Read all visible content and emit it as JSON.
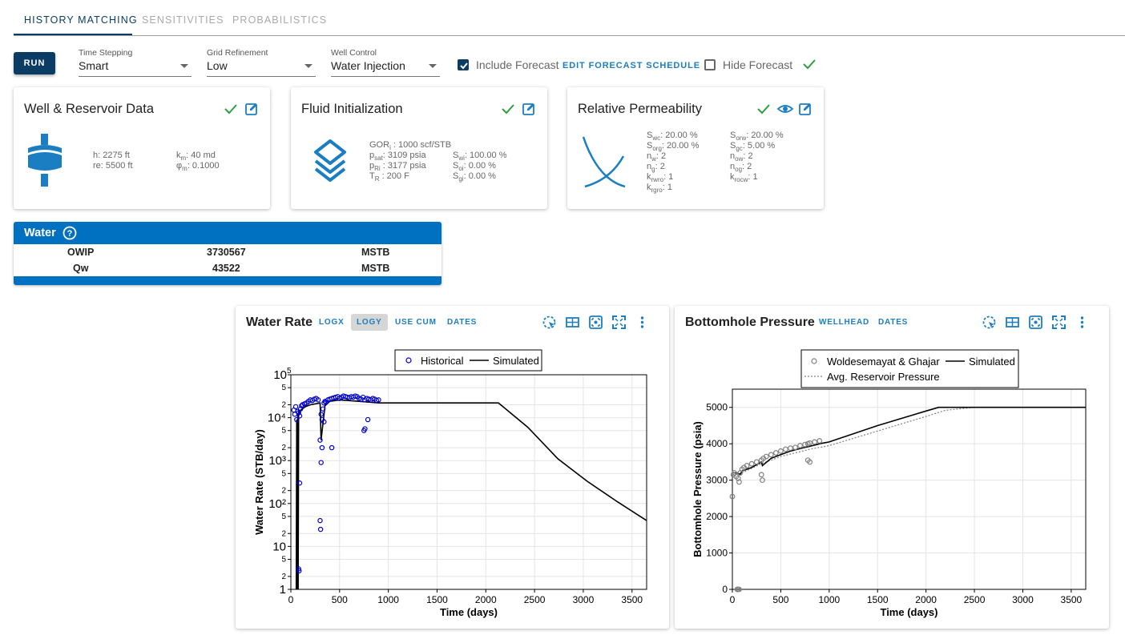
{
  "tabs": [
    {
      "label": "HISTORY MATCHING",
      "active": true
    },
    {
      "label": "SENSITIVITIES",
      "active": false
    },
    {
      "label": "PROBABILISTICS",
      "active": false
    }
  ],
  "toolbar": {
    "run_label": "RUN",
    "time_stepping": {
      "label": "Time Stepping",
      "value": "Smart"
    },
    "grid_refinement": {
      "label": "Grid Refinement",
      "value": "Low"
    },
    "well_control": {
      "label": "Well Control",
      "value": "Water Injection"
    },
    "include_forecast": {
      "label": "Include Forecast",
      "checked": true
    },
    "edit_forecast_label": "EDIT FORECAST SCHEDULE",
    "hide_forecast": {
      "label": "Hide Forecast",
      "checked": false
    },
    "status_icon": "check-icon"
  },
  "cards": {
    "well": {
      "title": "Well & Reservoir Data",
      "h": "h:  2275 ft",
      "re": "re:  5500 ft",
      "km_label": "k",
      "km_sub": "m",
      "km_value": ":  40 md",
      "phim_label": "φ",
      "phim_sub": "m",
      "phim_value": ":  0.1000"
    },
    "fluid": {
      "title": "Fluid Initialization",
      "gor": {
        "l": "GOR",
        "s": "i",
        "v": " :  1000 scf/STB"
      },
      "psat": {
        "l": "p",
        "s": "sat",
        "v": ":  3109 psia"
      },
      "pri": {
        "l": "p",
        "s": "Ri",
        "v": " :  3177 psia"
      },
      "tr": {
        "l": "T",
        "s": "R",
        "v": " :  200 F"
      },
      "swi": {
        "l": "S",
        "s": "wi",
        "v": ":  100.00 %"
      },
      "soi": {
        "l": "S",
        "s": "oi",
        "v": ":  0.00 %"
      },
      "sgi": {
        "l": "S",
        "s": "gi",
        "v": ":  0.00 %"
      }
    },
    "relperm": {
      "title": "Relative Permeability",
      "left": [
        {
          "l": "S",
          "s": "wc",
          "v": ":  20.00 %"
        },
        {
          "l": "S",
          "s": "org",
          "v": ":  20.00 %"
        },
        {
          "l": "n",
          "s": "w",
          "v": ":  2"
        },
        {
          "l": "n",
          "s": "g",
          "v": ":  2"
        },
        {
          "l": "k",
          "s": "rwro",
          "v": ":  1"
        },
        {
          "l": "k",
          "s": "rgro",
          "v": ":  1"
        }
      ],
      "right": [
        {
          "l": "S",
          "s": "orw",
          "v": ":  20.00 %"
        },
        {
          "l": "S",
          "s": "gc",
          "v": ":  5.00 %"
        },
        {
          "l": "n",
          "s": "ow",
          "v": ":  2"
        },
        {
          "l": "n",
          "s": "og",
          "v": ":  2"
        },
        {
          "l": "k",
          "s": "rocw",
          "v": ":  1"
        }
      ]
    }
  },
  "water": {
    "title": "Water",
    "rows": [
      {
        "name": "OWIP",
        "value": "3730567",
        "unit": "MSTB"
      },
      {
        "name": "Qw",
        "value": "43522",
        "unit": "MSTB"
      }
    ]
  },
  "plots": {
    "water_rate": {
      "title": "Water Rate",
      "buttons": [
        "LOGX",
        "LOGY",
        "USE CUM",
        "DATES"
      ],
      "active_button": "LOGY"
    },
    "bhp": {
      "title": "Bottomhole Pressure",
      "buttons": [
        "WELLHEAD",
        "DATES"
      ]
    }
  },
  "colors": {
    "accent": "#0070c0",
    "navy": "#0b3c63",
    "green": "#2e9e44",
    "link": "#1b7ec2"
  },
  "chart_data": [
    {
      "type": "line",
      "title": "",
      "xlabel": "Time (days)",
      "ylabel": "Water Rate (STB/day)",
      "xlim": [
        0,
        3650
      ],
      "ylim": [
        1,
        100000
      ],
      "y_scale": "log",
      "x_ticks": [
        0,
        500,
        1000,
        1500,
        2000,
        2500,
        3000,
        3500
      ],
      "y_tick_labels": [
        "1",
        "2",
        "5",
        "10",
        "2",
        "5",
        "10²",
        "2",
        "5",
        "10³",
        "2",
        "5",
        "10⁴",
        "2",
        "5",
        "10⁵"
      ],
      "legend": "top-center",
      "grid": true,
      "series": [
        {
          "name": "Historical",
          "marker": "circle-open",
          "color": "#0000cc",
          "x": [
            30,
            40,
            50,
            60,
            70,
            80,
            90,
            100,
            110,
            120,
            140,
            160,
            180,
            200,
            220,
            240,
            260,
            280,
            300,
            310,
            320,
            330,
            340,
            350,
            360,
            380,
            400,
            420,
            440,
            460,
            480,
            500,
            520,
            540,
            560,
            580,
            600,
            620,
            640,
            660,
            680,
            700,
            720,
            740,
            760,
            780,
            800,
            820,
            840,
            860,
            880,
            900,
            80,
            85,
            90,
            300,
            305,
            310,
            320,
            340,
            750,
            760,
            790,
            420
          ],
          "y": [
            15000,
            12000,
            18000,
            9000,
            14000,
            13000,
            11000,
            16000,
            19000,
            20000,
            21000,
            22000,
            24000,
            26000,
            25000,
            27000,
            28000,
            26000,
            3000,
            12000,
            9000,
            16000,
            22000,
            24000,
            23000,
            26000,
            27000,
            28000,
            29000,
            30000,
            31000,
            28000,
            30000,
            32000,
            31000,
            30000,
            29000,
            31000,
            30000,
            32000,
            31000,
            28000,
            27000,
            30000,
            26000,
            28000,
            27000,
            26000,
            28000,
            27000,
            25000,
            26000,
            3,
            2.7,
            300,
            40,
            25,
            900,
            2000,
            8000,
            5000,
            5500,
            9000,
            2000
          ]
        },
        {
          "name": "Simulated",
          "color": "#000000",
          "x": [
            55,
            60,
            65,
            70,
            75,
            80,
            90,
            100,
            150,
            200,
            300,
            310,
            350,
            400,
            500,
            600,
            700,
            800,
            900,
            1000,
            1500,
            2000,
            2130,
            2430,
            2740,
            3040,
            3350,
            3650
          ],
          "y": [
            1,
            9000,
            1,
            12000,
            1,
            14000,
            13000,
            15000,
            18000,
            20000,
            22000,
            3000,
            19000,
            24000,
            26000,
            25000,
            24000,
            23000,
            22000,
            22000,
            22000,
            22000,
            22000,
            6000,
            1100,
            330,
            110,
            40
          ]
        }
      ]
    },
    {
      "type": "line",
      "title": "",
      "xlabel": "Time (days)",
      "ylabel": "Bottomhole Pressure (psia)",
      "xlim": [
        0,
        3650
      ],
      "ylim": [
        0,
        5500
      ],
      "x_ticks": [
        0,
        500,
        1000,
        1500,
        2000,
        2500,
        3000,
        3500
      ],
      "y_ticks": [
        0,
        1000,
        2000,
        3000,
        4000,
        5000
      ],
      "legend": "top-center",
      "grid": true,
      "series": [
        {
          "name": "Woldesemayat & Ghajar",
          "marker": "circle-open",
          "color": "#808080",
          "x": [
            0,
            10,
            20,
            40,
            60,
            70,
            80,
            100,
            120,
            150,
            200,
            250,
            300,
            320,
            350,
            400,
            450,
            500,
            550,
            600,
            650,
            700,
            750,
            780,
            800,
            850,
            900,
            300,
            310,
            780,
            800,
            50,
            60,
            70
          ],
          "y": [
            2550,
            3150,
            3200,
            3100,
            3050,
            2950,
            3200,
            3300,
            3350,
            3400,
            3450,
            3500,
            3550,
            3600,
            3650,
            3700,
            3750,
            3800,
            3850,
            3880,
            3900,
            3950,
            3980,
            4000,
            4020,
            4050,
            4080,
            3150,
            3000,
            3550,
            3500,
            0,
            0,
            0
          ]
        },
        {
          "name": "Simulated",
          "color": "#000000",
          "x": [
            0,
            50,
            80,
            100,
            200,
            300,
            310,
            400,
            500,
            600,
            700,
            800,
            900,
            1000,
            1500,
            2000,
            2130,
            2500,
            3000,
            3650
          ],
          "y": [
            3200,
            3200,
            3150,
            3250,
            3350,
            3500,
            3400,
            3600,
            3700,
            3800,
            3870,
            3930,
            4000,
            4050,
            4500,
            4900,
            5000,
            5000,
            5000,
            5000
          ]
        },
        {
          "name": "Avg. Reservoir Pressure",
          "style": "dotted",
          "color": "#808080",
          "x": [
            0,
            100,
            300,
            500,
            800,
            1000,
            1500,
            2000,
            2200,
            2500,
            3000,
            3650
          ],
          "y": [
            3150,
            3200,
            3450,
            3650,
            3850,
            3950,
            4350,
            4750,
            4920,
            5000,
            5000,
            5000
          ]
        }
      ]
    }
  ]
}
